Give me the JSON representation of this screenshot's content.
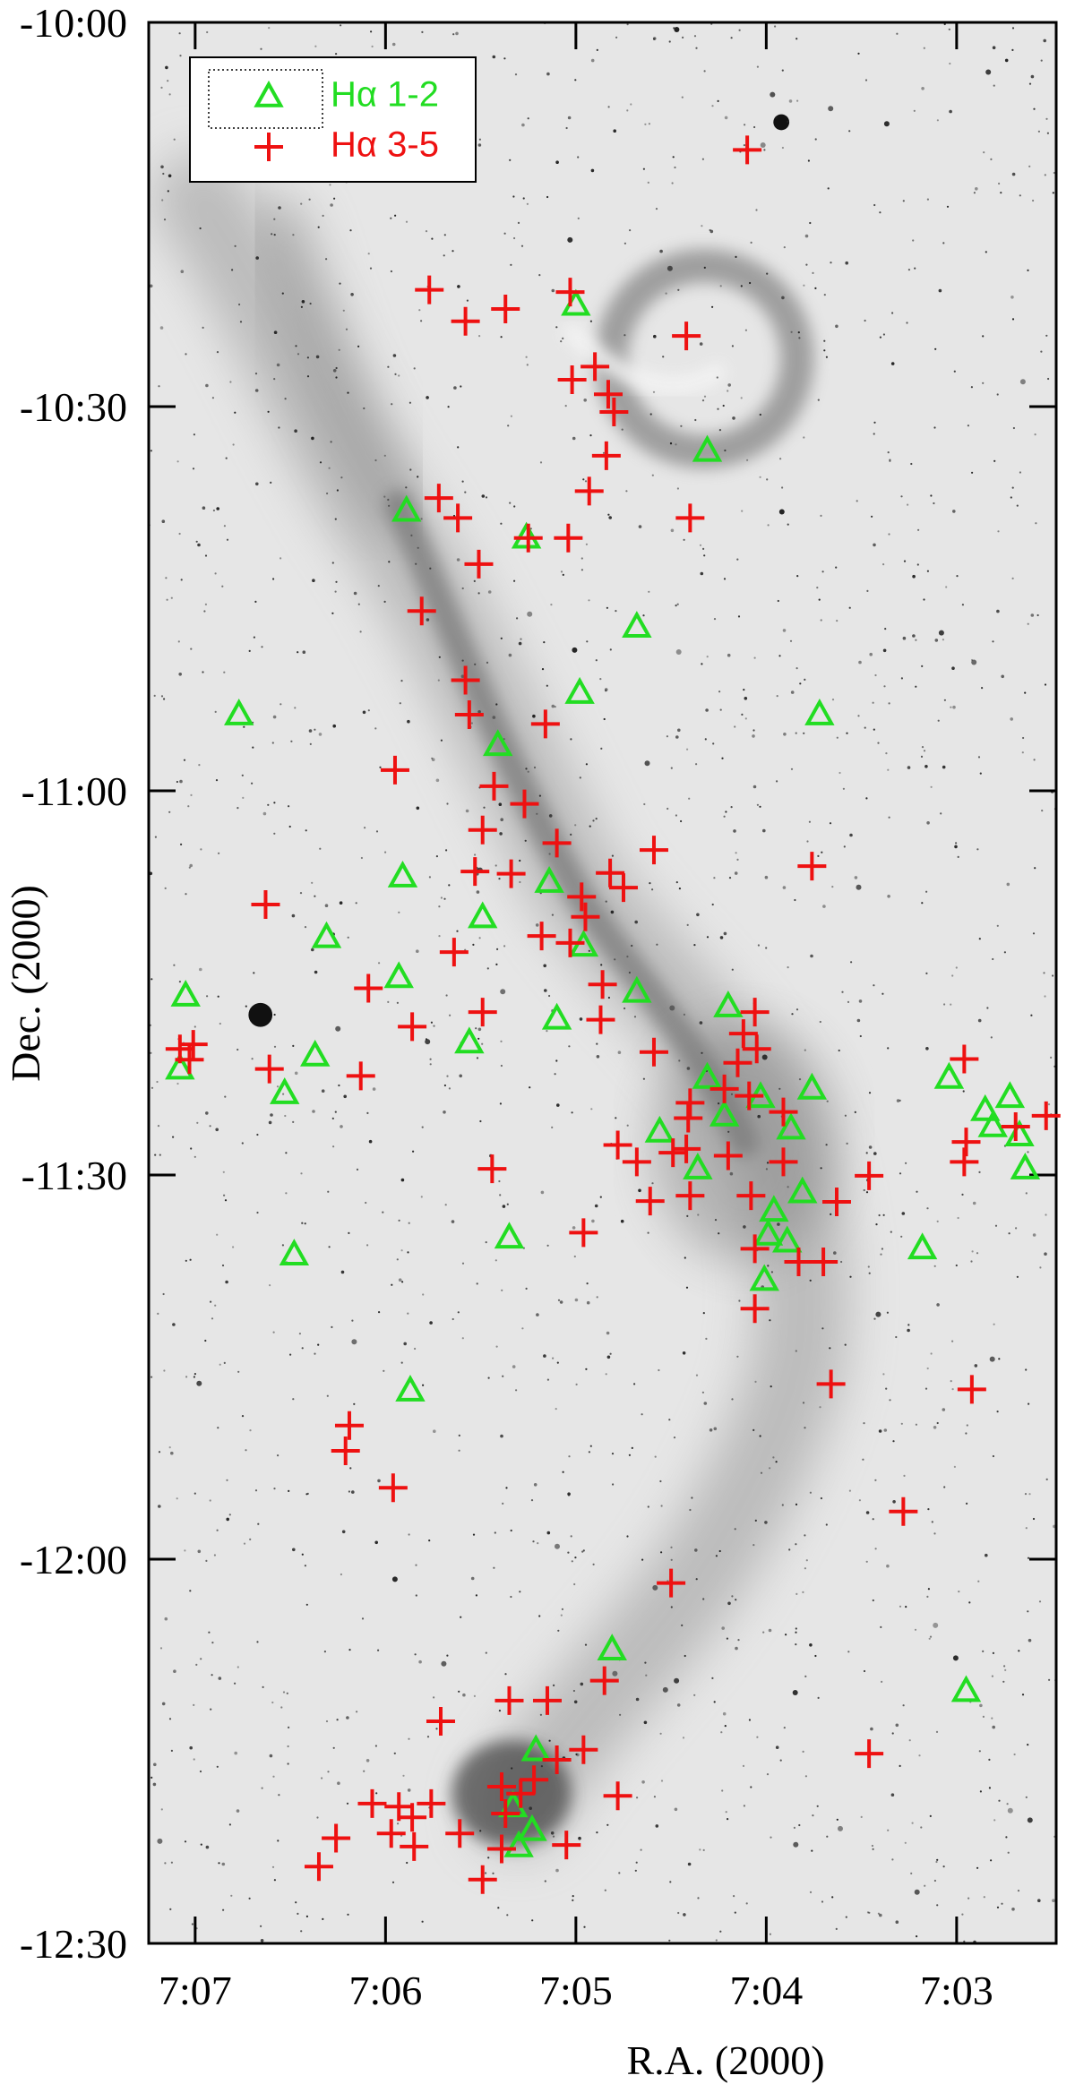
{
  "chart_data": {
    "type": "scatter",
    "xlabel": "R.A. (2000)",
    "ylabel": "Dec. (2000)",
    "xlim": [
      7.244,
      2.477
    ],
    "ylim": [
      -12.5,
      -10.0
    ],
    "xticks": [
      {
        "value": 7,
        "label": "7:07"
      },
      {
        "value": 6,
        "label": "7:06"
      },
      {
        "value": 5,
        "label": "7:05"
      },
      {
        "value": 4,
        "label": "7:04"
      },
      {
        "value": 3,
        "label": "7:03"
      }
    ],
    "yticks": [
      {
        "value": -10.0,
        "label": "-10:00"
      },
      {
        "value": -10.5,
        "label": "-10:30"
      },
      {
        "value": -11.0,
        "label": "-11:00"
      },
      {
        "value": -11.5,
        "label": "-11:30"
      },
      {
        "value": -12.0,
        "label": "-12:00"
      },
      {
        "value": -12.5,
        "label": "-12:30"
      }
    ],
    "legend": "upper left",
    "series": [
      {
        "name": "Hα 1-2",
        "color": "#22dd22",
        "marker": "triangle",
        "x": [
          5.0,
          4.31,
          5.89,
          5.26,
          4.68,
          6.77,
          4.98,
          3.72,
          5.41,
          5.91,
          5.14,
          5.49,
          6.31,
          5.93,
          4.96,
          7.05,
          4.68,
          5.1,
          6.37,
          5.56,
          7.08,
          6.53,
          4.2,
          4.31,
          3.76,
          3.04,
          4.03,
          3.87,
          4.56,
          4.36,
          4.22,
          3.81,
          3.96,
          3.99,
          3.89,
          4.01,
          3.18,
          2.85,
          2.72,
          2.81,
          2.67,
          2.64,
          5.35,
          6.48,
          5.87,
          4.81,
          2.95,
          5.21,
          5.33,
          5.23,
          5.3
        ],
        "values": [
          -10.368,
          -10.558,
          -10.636,
          -10.671,
          -10.787,
          -10.901,
          -10.873,
          -10.901,
          -10.941,
          -11.112,
          -11.119,
          -11.165,
          -11.191,
          -11.243,
          -11.202,
          -11.267,
          -11.262,
          -11.297,
          -11.345,
          -11.328,
          -11.362,
          -11.394,
          -11.281,
          -11.374,
          -11.388,
          -11.374,
          -11.399,
          -11.44,
          -11.444,
          -11.492,
          -11.423,
          -11.523,
          -11.547,
          -11.578,
          -11.587,
          -11.637,
          -11.596,
          -11.416,
          -11.399,
          -11.437,
          -11.449,
          -11.492,
          -11.582,
          -11.604,
          -11.781,
          -12.118,
          -12.172,
          -12.249,
          -12.322,
          -12.353,
          -12.374
        ]
      },
      {
        "name": "Hα 3-5",
        "color": "#ee1111",
        "marker": "plus",
        "x": [
          4.1,
          5.77,
          5.58,
          5.37,
          5.03,
          4.42,
          4.9,
          5.02,
          4.83,
          4.8,
          4.84,
          4.93,
          4.4,
          5.72,
          5.62,
          5.25,
          5.04,
          5.51,
          5.81,
          5.58,
          5.56,
          5.16,
          5.95,
          5.43,
          5.27,
          5.49,
          5.1,
          5.34,
          5.53,
          4.82,
          4.75,
          4.59,
          3.76,
          4.97,
          4.95,
          5.18,
          5.03,
          5.64,
          6.63,
          6.09,
          5.86,
          5.49,
          4.86,
          4.87,
          4.59,
          7.08,
          7.01,
          7.03,
          6.61,
          6.13,
          5.44,
          4.78,
          4.68,
          4.96,
          4.49,
          4.61,
          4.42,
          4.4,
          4.06,
          4.12,
          4.05,
          4.15,
          4.4,
          4.22,
          4.09,
          3.91,
          4.41,
          4.2,
          4.08,
          3.91,
          4.06,
          3.83,
          3.7,
          3.63,
          3.46,
          4.06,
          3.66,
          2.92,
          2.96,
          2.95,
          2.96,
          2.69,
          2.53,
          3.28,
          6.19,
          6.21,
          5.96,
          4.5,
          4.85,
          5.35,
          5.15,
          5.71,
          4.96,
          5.1,
          6.07,
          5.93,
          5.76,
          5.97,
          6.26,
          6.35,
          5.85,
          5.61,
          5.49,
          5.39,
          5.29,
          5.22,
          5.37,
          5.39,
          4.78,
          5.05,
          3.46,
          5.86
        ],
        "values": [
          -10.166,
          -10.348,
          -10.389,
          -10.373,
          -10.351,
          -10.408,
          -10.448,
          -10.465,
          -10.484,
          -10.507,
          -10.564,
          -10.61,
          -10.645,
          -10.619,
          -10.645,
          -10.671,
          -10.671,
          -10.705,
          -10.766,
          -10.856,
          -10.901,
          -10.913,
          -10.973,
          -10.994,
          -11.017,
          -11.051,
          -11.068,
          -11.108,
          -11.105,
          -11.107,
          -11.126,
          -11.077,
          -11.098,
          -11.138,
          -11.164,
          -11.189,
          -11.198,
          -11.21,
          -11.148,
          -11.257,
          -11.307,
          -11.288,
          -11.252,
          -11.298,
          -11.34,
          -11.336,
          -11.33,
          -11.35,
          -11.362,
          -11.371,
          -11.492,
          -11.461,
          -11.483,
          -11.575,
          -11.471,
          -11.534,
          -11.466,
          -11.527,
          -11.288,
          -11.316,
          -11.336,
          -11.354,
          -11.406,
          -11.388,
          -11.397,
          -11.418,
          -11.426,
          -11.475,
          -11.527,
          -11.483,
          -11.596,
          -11.613,
          -11.613,
          -11.535,
          -11.501,
          -11.674,
          -11.772,
          -11.779,
          -11.349,
          -11.457,
          -11.483,
          -11.437,
          -11.423,
          -11.938,
          -11.826,
          -11.859,
          -11.907,
          -12.031,
          -12.158,
          -12.184,
          -12.184,
          -12.211,
          -12.248,
          -12.261,
          -12.318,
          -12.322,
          -12.318,
          -12.357,
          -12.363,
          -12.4,
          -12.374,
          -12.357,
          -12.417,
          -12.296,
          -12.305,
          -12.287,
          -12.331,
          -12.377,
          -12.308,
          -12.372,
          -12.253,
          -12.336
        ]
      }
    ]
  }
}
